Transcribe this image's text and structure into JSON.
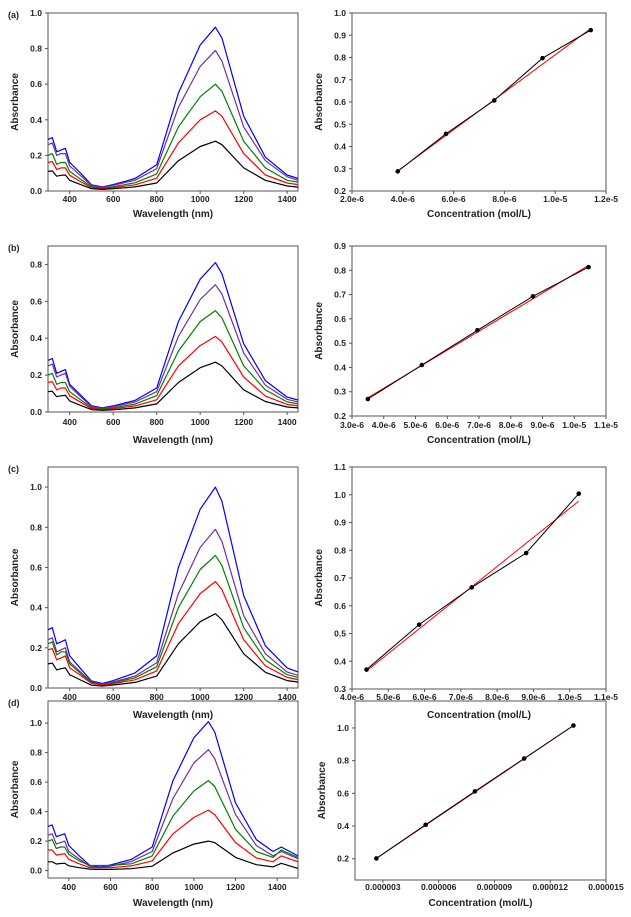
{
  "chart_data": [
    {
      "type": "line",
      "panel": "(a)",
      "xlabel": "Wavelength (nm)",
      "ylabel": "Absorbance",
      "xlim": [
        300,
        1450
      ],
      "ylim": [
        0,
        1.0
      ],
      "grid": false,
      "xticks": [
        400,
        600,
        800,
        1000,
        1200,
        1400
      ],
      "xtick_labels": [
        "400",
        "600",
        "800",
        "1000",
        "1200",
        "1400"
      ],
      "yticks": [
        0,
        0.2,
        0.4,
        0.6,
        0.8,
        1.0
      ],
      "ytick_labels": [
        "0.0",
        "0.2",
        "0.4",
        "0.6",
        "0.8",
        "1.0"
      ],
      "x": [
        300,
        320,
        340,
        360,
        380,
        400,
        450,
        500,
        550,
        600,
        700,
        800,
        900,
        1000,
        1070,
        1100,
        1200,
        1300,
        1400,
        1450
      ],
      "series": [
        {
          "color": "#0000ff",
          "values": [
            0.29,
            0.3,
            0.22,
            0.23,
            0.24,
            0.16,
            0.1,
            0.035,
            0.023,
            0.036,
            0.07,
            0.147,
            0.55,
            0.82,
            0.92,
            0.86,
            0.42,
            0.19,
            0.09,
            0.07
          ]
        },
        {
          "color": "#7030a0",
          "values": [
            0.26,
            0.27,
            0.2,
            0.21,
            0.21,
            0.14,
            0.086,
            0.031,
            0.021,
            0.032,
            0.06,
            0.126,
            0.47,
            0.7,
            0.79,
            0.73,
            0.36,
            0.17,
            0.08,
            0.06
          ]
        },
        {
          "color": "#008000",
          "values": [
            0.2,
            0.21,
            0.15,
            0.16,
            0.16,
            0.11,
            0.066,
            0.024,
            0.016,
            0.024,
            0.046,
            0.096,
            0.36,
            0.53,
            0.6,
            0.56,
            0.28,
            0.13,
            0.06,
            0.05
          ]
        },
        {
          "color": "#ff0000",
          "values": [
            0.16,
            0.165,
            0.12,
            0.13,
            0.13,
            0.088,
            0.053,
            0.019,
            0.013,
            0.019,
            0.035,
            0.072,
            0.27,
            0.4,
            0.45,
            0.42,
            0.21,
            0.09,
            0.045,
            0.036
          ]
        },
        {
          "color": "#000000",
          "values": [
            0.11,
            0.113,
            0.083,
            0.088,
            0.09,
            0.06,
            0.036,
            0.013,
            0.009,
            0.013,
            0.023,
            0.045,
            0.17,
            0.25,
            0.28,
            0.26,
            0.13,
            0.06,
            0.028,
            0.022
          ]
        }
      ]
    },
    {
      "type": "scatter",
      "xlabel": "Concentration (mol/L)",
      "ylabel": "Absorbance",
      "xlim": [
        2e-06,
        1.2e-05
      ],
      "ylim": [
        0.2,
        1.0
      ],
      "grid": false,
      "xticks": [
        2e-06,
        4e-06,
        6e-06,
        8e-06,
        1e-05,
        1.2e-05
      ],
      "xtick_labels": [
        "2.0e-6",
        "4.0e-6",
        "6.0e-6",
        "8.0e-6",
        "1.0e-5",
        "1.2e-5"
      ],
      "yticks": [
        0.2,
        0.3,
        0.4,
        0.5,
        0.6,
        0.7,
        0.8,
        0.9,
        1.0
      ],
      "ytick_labels": [
        "0.2",
        "0.3",
        "0.4",
        "0.5",
        "0.6",
        "0.7",
        "0.8",
        "0.9",
        "1.0"
      ],
      "x": [
        3.8e-06,
        5.7e-06,
        7.6e-06,
        9.5e-06,
        1.14e-05
      ],
      "y": [
        0.288,
        0.457,
        0.607,
        0.797,
        0.923
      ],
      "fit": {
        "x": [
          3.8e-06,
          1.14e-05
        ],
        "y": [
          0.29,
          0.93
        ],
        "color": "#ff0000"
      }
    },
    {
      "type": "line",
      "panel": "(b)",
      "xlabel": "Wavelength (nm)",
      "ylabel": "Absorbance",
      "xlim": [
        300,
        1450
      ],
      "ylim": [
        0,
        0.9
      ],
      "grid": false,
      "xticks": [
        400,
        600,
        800,
        1000,
        1200,
        1400
      ],
      "xtick_labels": [
        "400",
        "600",
        "800",
        "1000",
        "1200",
        "1400"
      ],
      "yticks": [
        0,
        0.2,
        0.4,
        0.6,
        0.8
      ],
      "ytick_labels": [
        "0.0",
        "0.2",
        "0.4",
        "0.6",
        "0.8"
      ],
      "x": [
        300,
        320,
        340,
        360,
        380,
        400,
        450,
        500,
        550,
        600,
        700,
        800,
        900,
        1000,
        1070,
        1100,
        1200,
        1300,
        1400,
        1450
      ],
      "series": [
        {
          "color": "#0000ff",
          "values": [
            0.28,
            0.29,
            0.21,
            0.22,
            0.23,
            0.15,
            0.092,
            0.034,
            0.022,
            0.033,
            0.063,
            0.13,
            0.49,
            0.72,
            0.81,
            0.75,
            0.37,
            0.17,
            0.081,
            0.065
          ]
        },
        {
          "color": "#7030a0",
          "values": [
            0.25,
            0.26,
            0.19,
            0.2,
            0.21,
            0.14,
            0.083,
            0.03,
            0.02,
            0.029,
            0.054,
            0.11,
            0.41,
            0.61,
            0.69,
            0.64,
            0.32,
            0.145,
            0.069,
            0.055
          ]
        },
        {
          "color": "#008000",
          "values": [
            0.2,
            0.21,
            0.15,
            0.16,
            0.16,
            0.11,
            0.066,
            0.024,
            0.016,
            0.023,
            0.043,
            0.089,
            0.33,
            0.49,
            0.55,
            0.51,
            0.25,
            0.12,
            0.055,
            0.044
          ]
        },
        {
          "color": "#ff0000",
          "values": [
            0.16,
            0.165,
            0.12,
            0.13,
            0.13,
            0.088,
            0.053,
            0.019,
            0.013,
            0.018,
            0.033,
            0.066,
            0.25,
            0.36,
            0.41,
            0.38,
            0.19,
            0.086,
            0.041,
            0.033
          ]
        },
        {
          "color": "#000000",
          "values": [
            0.11,
            0.113,
            0.083,
            0.088,
            0.09,
            0.06,
            0.036,
            0.013,
            0.009,
            0.012,
            0.022,
            0.044,
            0.16,
            0.24,
            0.27,
            0.25,
            0.12,
            0.057,
            0.027,
            0.022
          ]
        }
      ]
    },
    {
      "type": "scatter",
      "xlabel": "Concentration (mol/L)",
      "ylabel": "Absorbance",
      "xlim": [
        3e-06,
        1.1e-05
      ],
      "ylim": [
        0.2,
        0.9
      ],
      "grid": false,
      "xticks": [
        3e-06,
        4e-06,
        5e-06,
        6e-06,
        7e-06,
        8e-06,
        9e-06,
        1e-05,
        1.1e-05
      ],
      "xtick_labels": [
        "3.0e-6",
        "4.0e-6",
        "5.0e-6",
        "6.0e-6",
        "7.0e-6",
        "8.0e-6",
        "9.0e-6",
        "1.0e-5",
        "1.1e-5"
      ],
      "yticks": [
        0.2,
        0.3,
        0.4,
        0.5,
        0.6,
        0.7,
        0.8,
        0.9
      ],
      "ytick_labels": [
        "0.2",
        "0.3",
        "0.4",
        "0.5",
        "0.6",
        "0.7",
        "0.8",
        "0.9"
      ],
      "x": [
        3.5e-06,
        5.2e-06,
        6.95e-06,
        8.7e-06,
        1.045e-05
      ],
      "y": [
        0.27,
        0.41,
        0.553,
        0.693,
        0.813
      ],
      "fit": {
        "x": [
          3.5e-06,
          1.045e-05
        ],
        "y": [
          0.275,
          0.82
        ],
        "color": "#ff0000"
      }
    },
    {
      "type": "line",
      "panel": "(c)",
      "xlabel": "Wavelength (nm)",
      "ylabel": "Absorbance",
      "xlim": [
        300,
        1450
      ],
      "ylim": [
        0,
        1.1
      ],
      "grid": false,
      "xticks": [
        400,
        600,
        800,
        1000,
        1200,
        1400
      ],
      "xtick_labels": [
        "400",
        "600",
        "800",
        "1000",
        "1200",
        "1400"
      ],
      "yticks": [
        0,
        0.2,
        0.4,
        0.6,
        0.8,
        1.0
      ],
      "ytick_labels": [
        "0.0",
        "0.2",
        "0.4",
        "0.6",
        "0.8",
        "1.0"
      ],
      "x": [
        300,
        320,
        340,
        360,
        380,
        400,
        450,
        500,
        550,
        600,
        700,
        800,
        900,
        1000,
        1070,
        1100,
        1200,
        1300,
        1400,
        1450
      ],
      "series": [
        {
          "color": "#0000ff",
          "values": [
            0.29,
            0.3,
            0.22,
            0.23,
            0.24,
            0.16,
            0.096,
            0.035,
            0.023,
            0.037,
            0.075,
            0.16,
            0.6,
            0.89,
            1.0,
            0.93,
            0.46,
            0.21,
            0.1,
            0.08
          ]
        },
        {
          "color": "#7030a0",
          "values": [
            0.24,
            0.25,
            0.18,
            0.19,
            0.2,
            0.13,
            0.079,
            0.029,
            0.019,
            0.03,
            0.059,
            0.126,
            0.47,
            0.7,
            0.79,
            0.73,
            0.36,
            0.17,
            0.079,
            0.063
          ]
        },
        {
          "color": "#008000",
          "values": [
            0.22,
            0.23,
            0.165,
            0.18,
            0.18,
            0.12,
            0.073,
            0.026,
            0.018,
            0.026,
            0.051,
            0.106,
            0.4,
            0.59,
            0.66,
            0.61,
            0.3,
            0.14,
            0.066,
            0.053
          ]
        },
        {
          "color": "#ff0000",
          "values": [
            0.19,
            0.196,
            0.14,
            0.15,
            0.16,
            0.1,
            0.063,
            0.023,
            0.015,
            0.022,
            0.041,
            0.085,
            0.32,
            0.47,
            0.53,
            0.49,
            0.24,
            0.11,
            0.053,
            0.042
          ]
        },
        {
          "color": "#000000",
          "values": [
            0.12,
            0.124,
            0.09,
            0.096,
            0.1,
            0.066,
            0.04,
            0.014,
            0.01,
            0.015,
            0.028,
            0.059,
            0.22,
            0.33,
            0.37,
            0.34,
            0.17,
            0.078,
            0.037,
            0.03
          ]
        }
      ]
    },
    {
      "type": "scatter",
      "xlabel": "Concentration (mol/L)",
      "ylabel": "Absorbance",
      "xlim": [
        4e-06,
        1.1e-05
      ],
      "ylim": [
        0.3,
        1.1
      ],
      "grid": false,
      "xticks": [
        4e-06,
        5e-06,
        6e-06,
        7e-06,
        8e-06,
        9e-06,
        1e-05,
        1.1e-05
      ],
      "xtick_labels": [
        "4.0e-6",
        "5.0e-6",
        "6.0e-6",
        "7.0e-6",
        "8.0e-6",
        "9.0e-6",
        "1.0e-5",
        "1.1e-5"
      ],
      "yticks": [
        0.3,
        0.4,
        0.5,
        0.6,
        0.7,
        0.8,
        0.9,
        1.0,
        1.1
      ],
      "ytick_labels": [
        "0.3",
        "0.4",
        "0.5",
        "0.6",
        "0.7",
        "0.8",
        "0.9",
        "1.0",
        "1.1"
      ],
      "x": [
        4.4e-06,
        5.85e-06,
        7.3e-06,
        8.8e-06,
        1.025e-05
      ],
      "y": [
        0.37,
        0.532,
        0.666,
        0.79,
        1.004
      ],
      "fit": {
        "x": [
          4.4e-06,
          1.025e-05
        ],
        "y": [
          0.365,
          0.977
        ],
        "color": "#ff0000"
      }
    },
    {
      "type": "line",
      "panel": "(d)",
      "xlabel": "Wavelength (nm)",
      "ylabel": "Absorbance",
      "xlim": [
        300,
        1500
      ],
      "ylim": [
        -0.05,
        1.15
      ],
      "grid": false,
      "xticks": [
        400,
        600,
        800,
        1000,
        1200,
        1400
      ],
      "xtick_labels": [
        "400",
        "600",
        "800",
        "1000",
        "1200",
        "1400"
      ],
      "yticks": [
        0,
        0.2,
        0.4,
        0.6,
        0.8,
        1.0
      ],
      "ytick_labels": [
        "0.0",
        "0.2",
        "0.4",
        "0.6",
        "0.8",
        "1.0"
      ],
      "x": [
        300,
        320,
        340,
        360,
        380,
        400,
        450,
        500,
        550,
        600,
        700,
        800,
        900,
        1000,
        1070,
        1100,
        1200,
        1300,
        1380,
        1420,
        1500
      ],
      "series": [
        {
          "color": "#0000ff",
          "values": [
            0.3,
            0.31,
            0.23,
            0.24,
            0.25,
            0.17,
            0.1,
            0.036,
            0.024,
            0.038,
            0.076,
            0.16,
            0.61,
            0.9,
            1.01,
            0.94,
            0.46,
            0.21,
            0.13,
            0.16,
            0.1
          ]
        },
        {
          "color": "#7030a0",
          "values": [
            0.24,
            0.25,
            0.18,
            0.19,
            0.2,
            0.13,
            0.079,
            0.029,
            0.019,
            0.03,
            0.061,
            0.13,
            0.49,
            0.73,
            0.82,
            0.76,
            0.38,
            0.17,
            0.1,
            0.13,
            0.08
          ]
        },
        {
          "color": "#008000",
          "values": [
            0.2,
            0.21,
            0.15,
            0.16,
            0.16,
            0.11,
            0.066,
            0.035,
            0.035,
            0.035,
            0.046,
            0.1,
            0.37,
            0.54,
            0.61,
            0.57,
            0.28,
            0.13,
            0.09,
            0.14,
            0.09
          ]
        },
        {
          "color": "#ff0000",
          "values": [
            0.14,
            0.14,
            0.105,
            0.11,
            0.115,
            0.077,
            0.046,
            0.02,
            0.02,
            0.02,
            0.032,
            0.066,
            0.25,
            0.36,
            0.41,
            0.38,
            0.19,
            0.086,
            0.06,
            0.1,
            0.06
          ]
        },
        {
          "color": "#000000",
          "values": [
            0.06,
            0.06,
            0.045,
            0.048,
            0.05,
            0.033,
            0.02,
            0.01,
            0.008,
            0.008,
            0.013,
            0.03,
            0.12,
            0.18,
            0.2,
            0.19,
            0.09,
            0.04,
            0.025,
            0.05,
            0.015
          ]
        }
      ]
    },
    {
      "type": "scatter",
      "xlabel": "Concentration (mol/L)",
      "ylabel": "Absorbance",
      "xlim": [
        1.5e-06,
        1.5e-05
      ],
      "ylim": [
        0.07,
        1.165
      ],
      "grid": false,
      "xticks": [
        3e-06,
        6e-06,
        9e-06,
        1.2e-05,
        1.5e-05
      ],
      "xtick_labels": [
        "0.000003",
        "0.000006",
        "0.000009",
        "0.000012",
        "0.000015"
      ],
      "yticks": [
        0.2,
        0.4,
        0.6,
        0.8,
        1.0
      ],
      "ytick_labels": [
        "0.2",
        "0.4",
        "0.6",
        "0.8",
        "1.0"
      ],
      "x": [
        2.65e-06,
        5.3e-06,
        7.95e-06,
        1.06e-05,
        1.325e-05
      ],
      "y": [
        0.202,
        0.408,
        0.612,
        0.813,
        1.015
      ],
      "fit": {
        "x": [
          2.65e-06,
          1.325e-05
        ],
        "y": [
          0.202,
          1.015
        ],
        "color": "#ff0000"
      }
    }
  ]
}
